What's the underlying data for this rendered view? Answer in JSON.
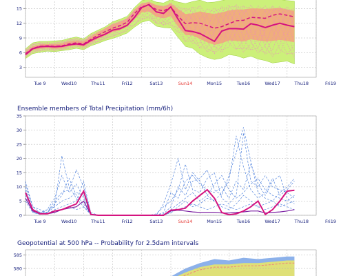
{
  "days": [
    "Tue 9",
    "Wed10",
    "Thu11",
    "Fri12",
    "Sat13",
    "Sun14",
    "Mon15",
    "Tue16",
    "Wed17",
    "Thu18",
    "Fri19"
  ],
  "highlight_day": "Sun14",
  "colors": {
    "axis_text": "#1a237e",
    "highlight_text": "#e53935",
    "band_outer": "#ccf07a",
    "band_inner": "#f4a27c",
    "member": "#ef7fc8",
    "members_blue": "#3a72d8",
    "main": "#d5137f",
    "grid": "#b0b0b0",
    "prob_outer": "#7fa9e8",
    "prob_mid": "#e8e66a",
    "prob_inner": "#f07c7c"
  },
  "chart_data": [
    {
      "id": "temperature-ensemble",
      "type": "area",
      "title": "",
      "ylim": [
        1,
        17
      ],
      "y_ticks": [
        3,
        6,
        9,
        12,
        15
      ],
      "x_label_days": [
        "Tue 9",
        "Wed10",
        "Thu11",
        "Fri12",
        "Sat13",
        "Sun14",
        "Mon15",
        "Tue16",
        "Wed17",
        "Thu18",
        "Fri19"
      ],
      "x": [
        0,
        0.25,
        0.5,
        0.75,
        1,
        1.25,
        1.5,
        1.75,
        2,
        2.25,
        2.5,
        2.75,
        3,
        3.25,
        3.5,
        3.75,
        4,
        4.25,
        4.5,
        4.75,
        5,
        5.25,
        5.5,
        5.75,
        6,
        6.25,
        6.5,
        6.75,
        7,
        7.25,
        7.5,
        7.75,
        8,
        8.25,
        8.5,
        8.75,
        9,
        9.25
      ],
      "series": [
        {
          "role": "main",
          "values": [
            5.6,
            6.8,
            7.2,
            7.3,
            7.2,
            7.3,
            7.6,
            7.8,
            7.6,
            8.5,
            9.2,
            9.8,
            10.6,
            10.9,
            11.6,
            13.2,
            15.2,
            15.8,
            14.3,
            14.0,
            15.3,
            12.8,
            10.5,
            10.3,
            9.9,
            9.1,
            8.3,
            10.4,
            10.9,
            10.9,
            10.8,
            11.9,
            11.6,
            11.1,
            11.6,
            12.0,
            11.6,
            11.3
          ]
        },
        {
          "role": "mean",
          "values": [
            5.8,
            6.9,
            7.3,
            7.4,
            7.3,
            7.4,
            7.8,
            8.0,
            7.8,
            8.7,
            9.6,
            10.3,
            11.0,
            11.5,
            12.2,
            14.0,
            15.4,
            15.6,
            14.8,
            14.5,
            15.3,
            13.4,
            11.9,
            12.1,
            12.0,
            11.5,
            11.0,
            11.3,
            11.9,
            12.5,
            12.6,
            13.2,
            13.1,
            13.0,
            13.6,
            13.9,
            13.6,
            13.3
          ]
        },
        {
          "role": "band_outer_low",
          "values": [
            4.8,
            5.8,
            6.1,
            6.3,
            6.2,
            6.4,
            6.6,
            6.9,
            6.6,
            7.4,
            7.9,
            8.5,
            8.9,
            9.4,
            10.0,
            11.2,
            12.2,
            12.6,
            11.4,
            11.1,
            11.0,
            9.1,
            7.3,
            6.9,
            5.7,
            5.0,
            4.6,
            4.9,
            5.6,
            5.4,
            4.9,
            5.3,
            4.7,
            4.4,
            3.9,
            4.1,
            4.3,
            3.7
          ]
        },
        {
          "role": "band_outer_high",
          "values": [
            6.8,
            8.0,
            8.3,
            8.3,
            8.4,
            8.5,
            8.9,
            9.2,
            8.8,
            9.9,
            10.6,
            11.3,
            12.3,
            12.8,
            13.4,
            15.2,
            16.6,
            16.9,
            16.3,
            16.1,
            16.8,
            16.3,
            16.0,
            16.4,
            16.7,
            16.2,
            16.3,
            16.6,
            16.9,
            17.0,
            16.9,
            16.8,
            16.9,
            16.8,
            16.9,
            16.8,
            16.6,
            16.5
          ]
        },
        {
          "role": "band_inner_low",
          "values": [
            5.4,
            6.5,
            6.8,
            6.9,
            6.8,
            6.9,
            7.3,
            7.5,
            7.2,
            8.1,
            8.8,
            9.5,
            10.2,
            10.6,
            11.3,
            12.8,
            14.2,
            14.4,
            13.3,
            13.0,
            13.4,
            11.3,
            9.6,
            9.5,
            8.8,
            8.1,
            7.6,
            7.9,
            8.5,
            8.4,
            8.3,
            8.7,
            8.5,
            8.3,
            8.4,
            8.6,
            8.4,
            8.1
          ]
        },
        {
          "role": "band_inner_high",
          "values": [
            6.2,
            7.3,
            7.7,
            7.8,
            7.8,
            7.9,
            8.3,
            8.5,
            8.3,
            9.3,
            10.2,
            11.0,
            11.8,
            12.3,
            13.0,
            14.8,
            16.0,
            16.3,
            15.7,
            15.4,
            16.0,
            14.9,
            13.9,
            14.0,
            14.4,
            14.1,
            13.9,
            14.2,
            14.6,
            14.8,
            14.8,
            15.0,
            15.0,
            14.9,
            15.0,
            15.1,
            14.8,
            14.5
          ]
        }
      ]
    },
    {
      "id": "precipitation-ensemble",
      "type": "line",
      "title": "Ensemble members of Total Precipitation (mm/6h)",
      "ylim": [
        0,
        35
      ],
      "y_ticks": [
        0,
        5,
        10,
        15,
        20,
        25,
        30,
        35
      ],
      "x_label_days": [
        "Tue 9",
        "Wed10",
        "Thu11",
        "Fri12",
        "Sat13",
        "Sun14",
        "Mon15",
        "Tue16",
        "Wed17",
        "Thu18",
        "Fri19"
      ],
      "x": [
        0,
        0.25,
        0.5,
        0.75,
        1,
        1.25,
        1.5,
        1.75,
        2,
        2.25,
        2.5,
        2.75,
        3,
        3.25,
        3.5,
        3.75,
        4,
        4.25,
        4.5,
        4.75,
        5,
        5.25,
        5.5,
        5.75,
        6,
        6.25,
        6.5,
        6.75,
        7,
        7.25,
        7.5,
        7.75,
        8,
        8.25,
        8.5,
        8.75,
        9,
        9.25
      ],
      "series": [
        {
          "role": "main",
          "values": [
            8,
            2,
            0.5,
            0.5,
            1.5,
            2,
            3,
            4,
            8.5,
            0.3,
            0,
            0,
            0,
            0,
            0,
            0,
            0,
            0,
            0,
            0,
            1.8,
            2,
            2.5,
            5,
            7,
            9,
            6,
            1,
            0.2,
            0.5,
            1.5,
            3,
            5,
            0.3,
            2,
            5,
            8.5,
            8.8
          ]
        },
        {
          "role": "secondary",
          "values": [
            6,
            1.5,
            0.5,
            0.5,
            1,
            2,
            2.5,
            3,
            5,
            0.3,
            0,
            0,
            0,
            0,
            0,
            0,
            0,
            0,
            0,
            0,
            1.5,
            1.8,
            1.5,
            1.2,
            1,
            1,
            1,
            0.8,
            0.8,
            1,
            1.2,
            1.5,
            1.5,
            0.8,
            1,
            1.2,
            1.5,
            2
          ]
        },
        {
          "role": "member",
          "values": [
            12,
            3,
            1,
            2,
            6,
            14,
            8,
            11,
            6,
            0.5,
            0,
            0,
            0,
            0,
            0,
            0,
            0,
            0,
            0,
            4,
            11,
            20,
            9,
            15,
            12,
            7,
            5,
            8,
            12,
            28,
            17,
            9,
            6,
            8,
            13,
            7,
            9,
            12
          ]
        },
        {
          "role": "member",
          "values": [
            10,
            2,
            1,
            1,
            4,
            7,
            13,
            7,
            4,
            0.3,
            0,
            0,
            0,
            0,
            0,
            0,
            0,
            0,
            0.5,
            3,
            5,
            9,
            18,
            9,
            8,
            13,
            15,
            6,
            4,
            7,
            29,
            12,
            10,
            14,
            10,
            9,
            8,
            6
          ]
        },
        {
          "role": "member",
          "values": [
            9,
            1,
            0.5,
            2,
            3,
            21,
            10,
            6,
            3,
            0.5,
            0,
            0,
            0,
            0,
            0,
            0,
            0,
            0,
            0,
            1,
            8,
            6,
            12,
            14,
            11,
            9,
            8,
            10,
            6,
            12,
            9,
            18,
            11,
            7,
            12,
            14,
            6,
            4
          ]
        },
        {
          "role": "member",
          "values": [
            11,
            3,
            2,
            1,
            5,
            8,
            9,
            16,
            10,
            1,
            0,
            0,
            0,
            0,
            0,
            0,
            0,
            0,
            0,
            0.5,
            3,
            10,
            7,
            12,
            13,
            16,
            9,
            7,
            14,
            22,
            31,
            19,
            8,
            6,
            5,
            8,
            10,
            13
          ]
        },
        {
          "role": "member",
          "values": [
            7,
            1,
            0.3,
            1,
            3,
            5,
            6,
            8,
            7,
            0.2,
            0,
            0,
            0,
            0,
            0,
            0,
            0,
            0,
            0,
            0,
            2,
            4,
            6,
            8,
            5,
            7,
            11,
            14,
            9,
            6,
            8,
            11,
            13,
            9,
            7,
            6,
            5,
            7
          ]
        },
        {
          "role": "member",
          "values": [
            8,
            2,
            1,
            0.5,
            2,
            3,
            4,
            5,
            12,
            0.5,
            0,
            0,
            0,
            0,
            0,
            0,
            0,
            0,
            0,
            0,
            1,
            3,
            5,
            3,
            4,
            6,
            5,
            3,
            2,
            4,
            7,
            5,
            3,
            4,
            5,
            3,
            4,
            5
          ]
        },
        {
          "role": "member",
          "values": [
            5,
            1,
            0.5,
            0.5,
            1,
            2,
            3,
            2,
            3,
            0.2,
            0,
            0,
            0,
            0,
            0,
            0,
            0,
            0,
            0,
            0,
            1,
            2,
            3,
            4,
            3,
            2,
            3,
            4,
            3,
            2,
            3,
            4,
            3,
            2,
            3,
            4,
            3,
            2
          ]
        }
      ]
    },
    {
      "id": "geopotential-probability",
      "type": "area",
      "title": "Geopotential at 500 hPa -- Probability for 2.5dam intervals",
      "ylim": [
        572,
        587
      ],
      "y_ticks": [
        580,
        585
      ],
      "x": [
        5.0,
        5.5,
        6.0,
        6.5,
        7.0,
        7.5,
        8.0,
        8.5,
        9.0,
        9.25
      ],
      "series": [
        {
          "role": "outer_high",
          "values": [
            577,
            580,
            582,
            583.5,
            583,
            584,
            583.5,
            584,
            584.5,
            584.5
          ]
        },
        {
          "role": "mid_high",
          "values": [
            576,
            578.5,
            580.5,
            581.5,
            581.5,
            582,
            582,
            582.5,
            583,
            583
          ]
        },
        {
          "role": "inner_high",
          "values": [
            575.5,
            577.5,
            579.5,
            580.5,
            580.5,
            581,
            581,
            581.5,
            582,
            582
          ]
        }
      ]
    }
  ]
}
